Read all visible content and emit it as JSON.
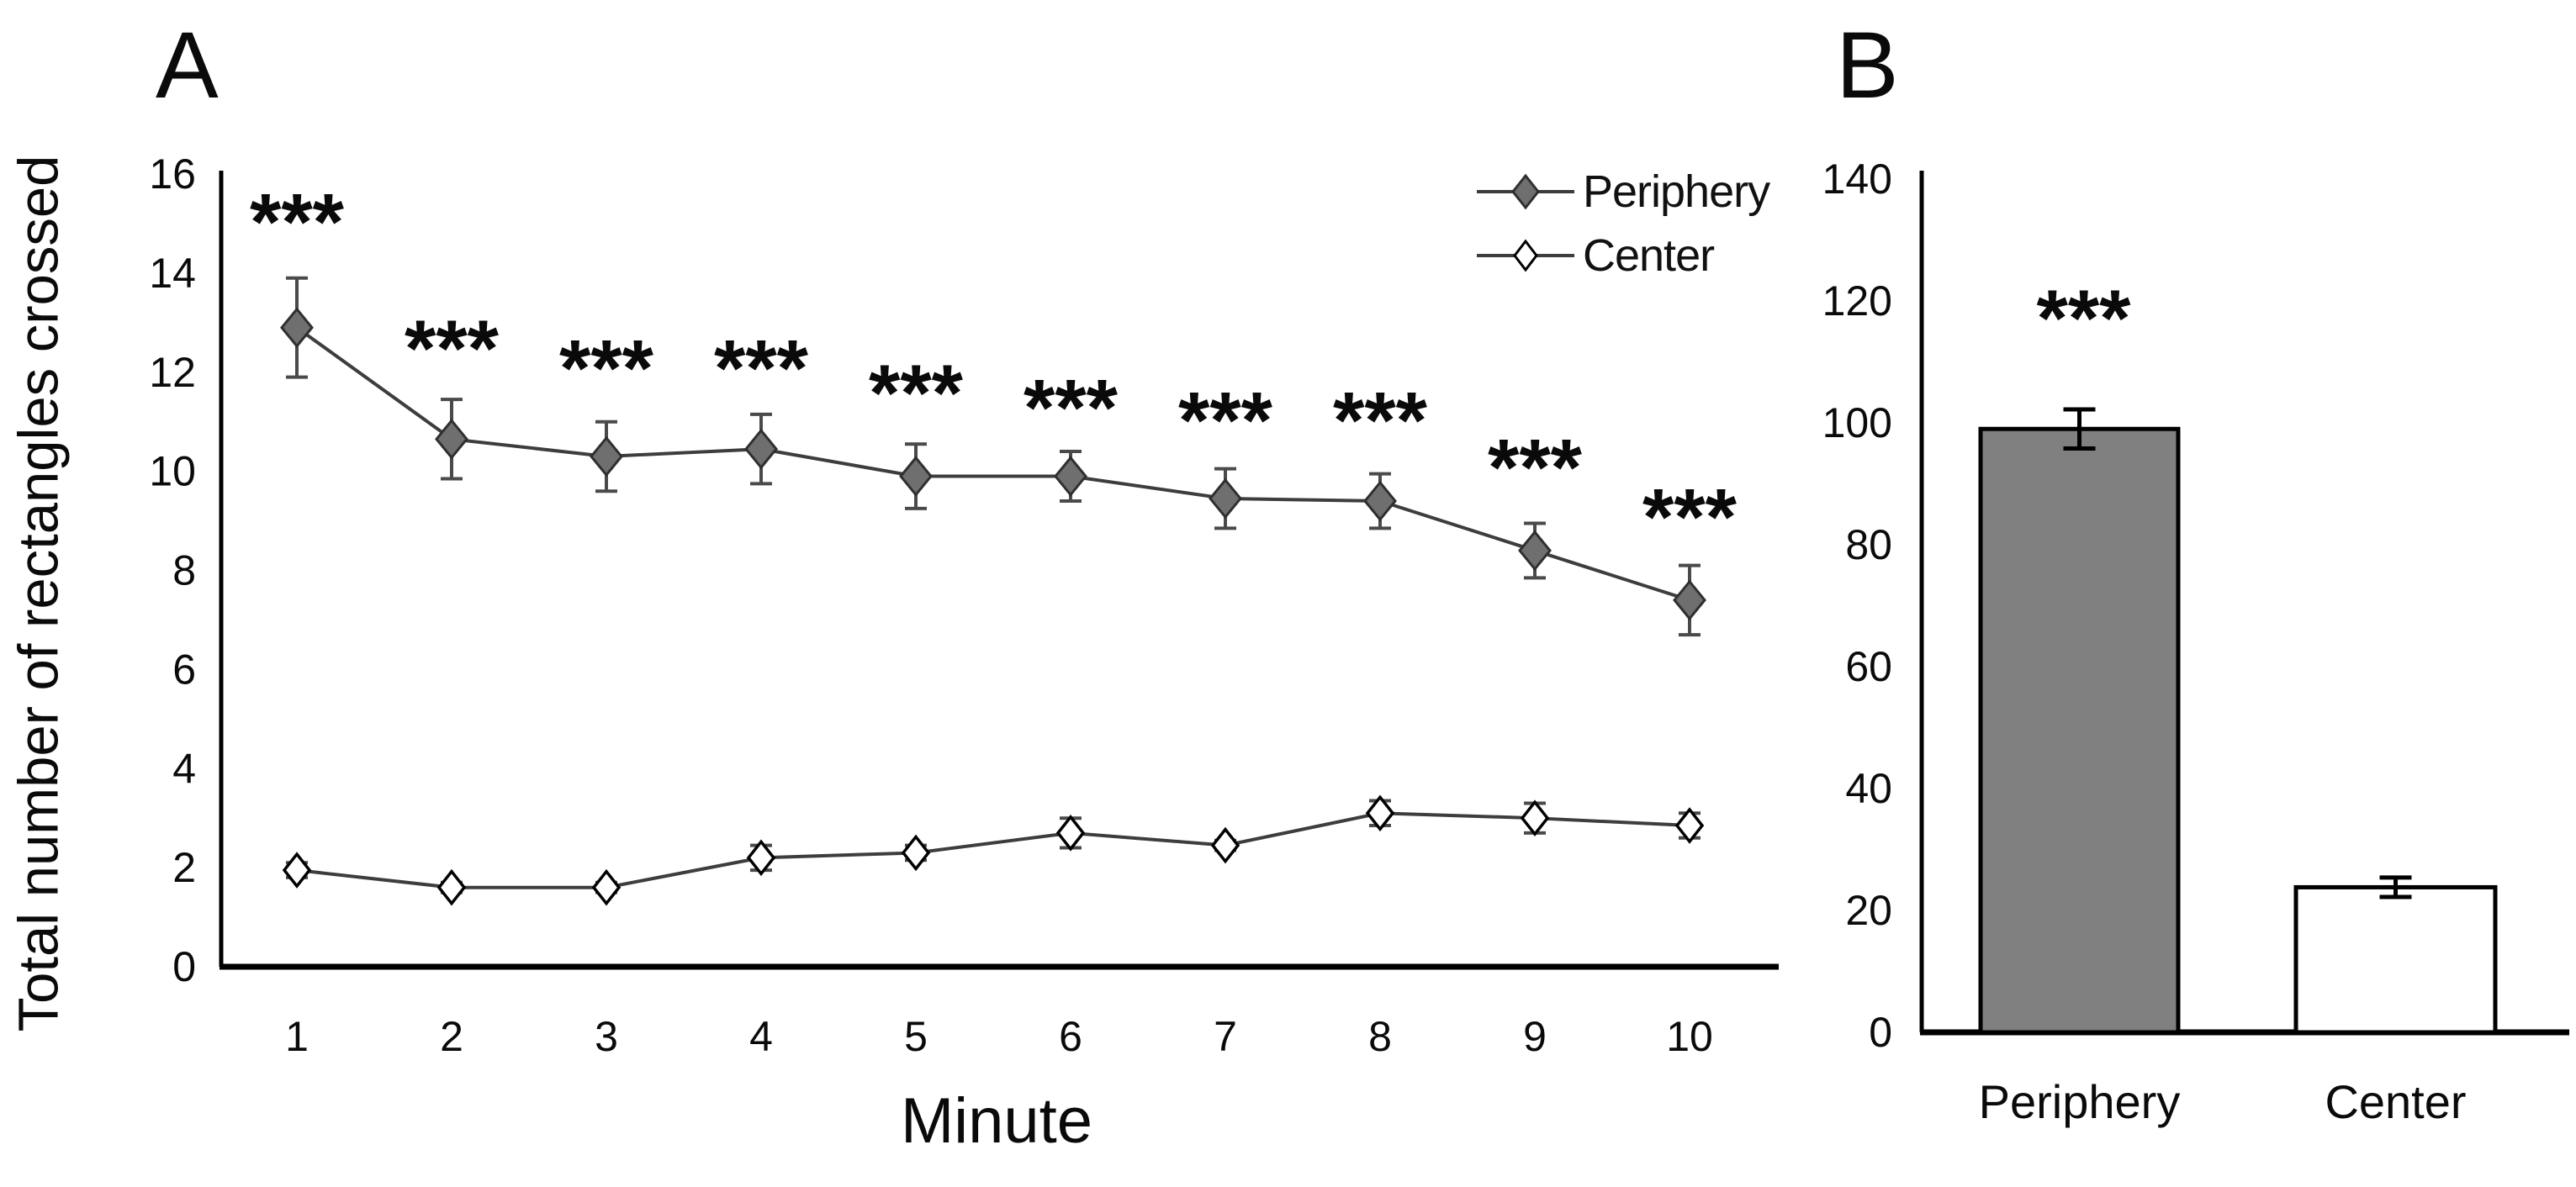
{
  "figure": {
    "panel_a_label": "A",
    "panel_b_label": "B",
    "significance_mark": "***",
    "colors": {
      "axis": "#000000",
      "text": "#0a0a0a",
      "line": "#3d3d3d",
      "error_bar_a": "#4a4a4a",
      "error_bar_b": "#000000",
      "filled_marker": "#6f6f6f",
      "marker_edge": "#2f2f2f",
      "periphery_bar": "#808080",
      "center_bar": "#ffffff",
      "bar_border": "#000000"
    }
  },
  "chart_data": [
    {
      "type": "line",
      "panel": "A",
      "title": "",
      "xlabel": "Minute",
      "ylabel": "Total number of rectangles crossed",
      "x": [
        1,
        2,
        3,
        4,
        5,
        6,
        7,
        8,
        9,
        10
      ],
      "ylim": [
        0,
        16
      ],
      "yticks": [
        0,
        2,
        4,
        6,
        8,
        10,
        12,
        14,
        16
      ],
      "grid": false,
      "legend_position": "top-right",
      "series": [
        {
          "name": "Periphery",
          "marker": "filled-diamond",
          "marker_color": "#6f6f6f",
          "line_color": "#3d3d3d",
          "values": [
            12.9,
            10.65,
            10.3,
            10.45,
            9.9,
            9.9,
            9.45,
            9.4,
            8.4,
            7.4
          ],
          "errors": [
            1.0,
            0.8,
            0.7,
            0.7,
            0.65,
            0.5,
            0.6,
            0.55,
            0.55,
            0.7
          ]
        },
        {
          "name": "Center",
          "marker": "open-diamond",
          "marker_color": "#ffffff",
          "line_color": "#3d3d3d",
          "values": [
            1.95,
            1.6,
            1.6,
            2.2,
            2.3,
            2.7,
            2.45,
            3.1,
            3.0,
            2.85
          ],
          "errors": [
            0.15,
            0.1,
            0.1,
            0.25,
            0.15,
            0.3,
            0.1,
            0.25,
            0.3,
            0.25
          ]
        }
      ],
      "annotations": [
        {
          "text": "***",
          "x": 1,
          "y": 15.25
        },
        {
          "text": "***",
          "x": 2,
          "y": 12.7
        },
        {
          "text": "***",
          "x": 3,
          "y": 12.3
        },
        {
          "text": "***",
          "x": 4,
          "y": 12.3
        },
        {
          "text": "***",
          "x": 5,
          "y": 11.8
        },
        {
          "text": "***",
          "x": 6,
          "y": 11.5
        },
        {
          "text": "***",
          "x": 7,
          "y": 11.25
        },
        {
          "text": "***",
          "x": 8,
          "y": 11.25
        },
        {
          "text": "***",
          "x": 9,
          "y": 10.3
        },
        {
          "text": "***",
          "x": 10,
          "y": 9.3
        }
      ]
    },
    {
      "type": "bar",
      "panel": "B",
      "title": "",
      "xlabel": "",
      "ylabel": "",
      "categories": [
        "Periphery",
        "Center"
      ],
      "values": [
        99,
        23.8
      ],
      "errors": [
        3.2,
        1.6
      ],
      "bar_fills": [
        "#808080",
        "#ffffff"
      ],
      "bar_border": "#000000",
      "ylim": [
        0,
        140
      ],
      "yticks": [
        0,
        20,
        40,
        60,
        80,
        100,
        120,
        140
      ],
      "grid": false,
      "annotations": [
        {
          "text": "***",
          "category": "Periphery",
          "y": 119
        }
      ]
    }
  ]
}
